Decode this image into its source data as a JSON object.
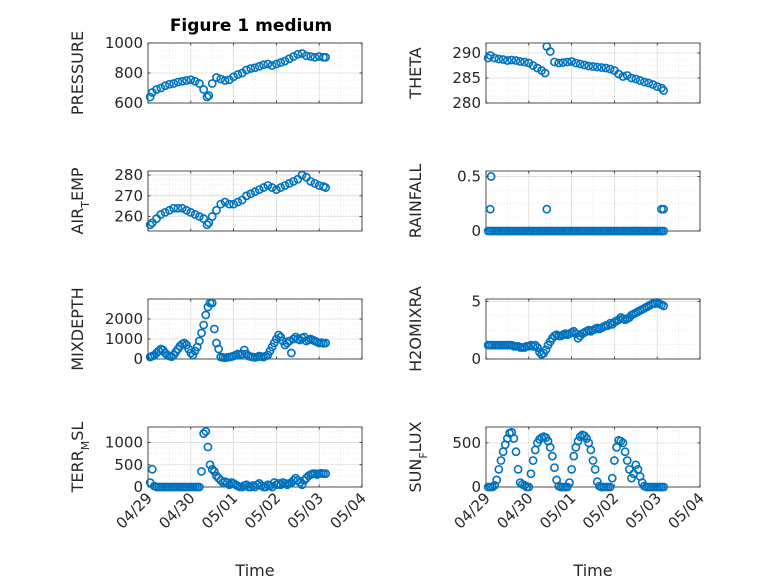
{
  "figure": {
    "title": "Figure 1 medium",
    "colors": {
      "marker": "#0072BD",
      "grid": "#dcdcdc",
      "axis": "#262626",
      "background": "#ffffff"
    }
  },
  "chart_data": [
    {
      "type": "scatter",
      "marker": "circle-open",
      "ylabel": "PRESSURE",
      "ylim": [
        600,
        1000
      ],
      "yticks": [
        600,
        800,
        1000
      ],
      "yticklabels": [
        "600",
        "800",
        "1000"
      ],
      "xlim": [
        0,
        5
      ],
      "xticks": [
        0,
        1,
        2,
        3,
        4,
        5
      ],
      "xticklabels": [
        "04/29",
        "04/30",
        "05/01",
        "05/02",
        "05/03",
        "05/04"
      ],
      "show_xticklabels": false,
      "xlabel": "",
      "grid": true,
      "x": [
        0.05,
        0.1,
        0.2,
        0.3,
        0.4,
        0.5,
        0.6,
        0.7,
        0.8,
        0.9,
        1.0,
        1.1,
        1.2,
        1.3,
        1.38,
        1.42,
        1.5,
        1.6,
        1.7,
        1.8,
        1.9,
        2.0,
        2.1,
        2.2,
        2.3,
        2.4,
        2.5,
        2.6,
        2.7,
        2.8,
        2.9,
        3.0,
        3.1,
        3.2,
        3.3,
        3.4,
        3.5,
        3.6,
        3.7,
        3.8,
        3.9,
        4.0,
        4.1,
        4.15
      ],
      "y": [
        640,
        670,
        690,
        700,
        715,
        725,
        730,
        740,
        745,
        750,
        755,
        745,
        730,
        690,
        640,
        650,
        730,
        770,
        760,
        750,
        755,
        775,
        790,
        800,
        820,
        830,
        835,
        845,
        855,
        860,
        850,
        860,
        870,
        880,
        895,
        910,
        925,
        930,
        915,
        910,
        905,
        910,
        905,
        905
      ]
    },
    {
      "type": "scatter",
      "marker": "circle-open",
      "ylabel": "THETA",
      "ylim": [
        280,
        292
      ],
      "yticks": [
        280,
        285,
        290
      ],
      "yticklabels": [
        "280",
        "285",
        "290"
      ],
      "xlim": [
        0,
        5
      ],
      "xticks": [
        0,
        1,
        2,
        3,
        4,
        5
      ],
      "xticklabels": [
        "04/29",
        "04/30",
        "05/01",
        "05/02",
        "05/03",
        "05/04"
      ],
      "show_xticklabels": false,
      "xlabel": "",
      "grid": true,
      "x": [
        0.05,
        0.1,
        0.2,
        0.3,
        0.4,
        0.5,
        0.6,
        0.7,
        0.8,
        0.9,
        1.0,
        1.1,
        1.2,
        1.3,
        1.38,
        1.42,
        1.5,
        1.6,
        1.7,
        1.8,
        1.9,
        2.0,
        2.1,
        2.2,
        2.3,
        2.4,
        2.5,
        2.6,
        2.7,
        2.8,
        2.9,
        3.0,
        3.1,
        3.2,
        3.3,
        3.4,
        3.5,
        3.6,
        3.7,
        3.8,
        3.9,
        4.0,
        4.1,
        4.15
      ],
      "y": [
        289,
        289.5,
        289,
        288.8,
        288.7,
        288.5,
        288.6,
        288.5,
        288.3,
        288.2,
        288,
        287.5,
        287,
        286.5,
        286,
        291.3,
        290.3,
        288.2,
        288,
        288.1,
        288.2,
        288.3,
        288,
        287.8,
        287.6,
        287.4,
        287.3,
        287.2,
        287.1,
        287,
        286.8,
        286.5,
        285.8,
        285.3,
        285.5,
        285,
        284.8,
        284.5,
        284.2,
        284,
        283.7,
        283.3,
        283,
        282.5
      ]
    },
    {
      "type": "scatter",
      "marker": "circle-open",
      "ylabel": "AIR_TEMP",
      "ylim": [
        253,
        282
      ],
      "yticks": [
        260,
        270,
        280
      ],
      "yticklabels": [
        "260",
        "270",
        "280"
      ],
      "xlim": [
        0,
        5
      ],
      "xticks": [
        0,
        1,
        2,
        3,
        4,
        5
      ],
      "xticklabels": [
        "04/29",
        "04/30",
        "05/01",
        "05/02",
        "05/03",
        "05/04"
      ],
      "show_xticklabels": false,
      "xlabel": "",
      "grid": true,
      "x": [
        0.05,
        0.1,
        0.2,
        0.3,
        0.4,
        0.5,
        0.6,
        0.7,
        0.8,
        0.9,
        1.0,
        1.1,
        1.2,
        1.3,
        1.38,
        1.42,
        1.5,
        1.6,
        1.7,
        1.8,
        1.9,
        2.0,
        2.1,
        2.2,
        2.3,
        2.4,
        2.5,
        2.6,
        2.7,
        2.8,
        2.9,
        3.0,
        3.1,
        3.2,
        3.3,
        3.4,
        3.5,
        3.6,
        3.7,
        3.8,
        3.9,
        4.0,
        4.1,
        4.15
      ],
      "y": [
        256,
        257,
        259,
        261,
        262,
        263,
        264,
        264,
        264,
        263,
        262,
        261,
        260,
        259,
        256,
        257,
        260,
        263,
        266,
        267,
        266,
        266,
        267,
        268,
        270,
        271,
        272,
        273,
        274,
        275,
        274,
        273,
        274,
        275,
        276,
        277,
        278,
        280,
        279,
        277,
        276,
        275,
        274.5,
        274
      ]
    },
    {
      "type": "scatter",
      "marker": "circle-open",
      "ylabel": "RAINFALL",
      "ylim": [
        0,
        0.55
      ],
      "yticks": [
        0,
        0.5
      ],
      "yticklabels": [
        "0",
        "0.5"
      ],
      "xlim": [
        0,
        5
      ],
      "xticks": [
        0,
        1,
        2,
        3,
        4,
        5
      ],
      "xticklabels": [
        "04/29",
        "04/30",
        "05/01",
        "05/02",
        "05/03",
        "05/04"
      ],
      "show_xticklabels": false,
      "xlabel": "",
      "grid": true,
      "x": [
        0.05,
        0.1,
        0.15,
        0.2,
        0.25,
        0.3,
        0.35,
        0.4,
        0.45,
        0.5,
        0.55,
        0.6,
        0.65,
        0.7,
        0.75,
        0.8,
        0.85,
        0.9,
        0.95,
        1.0,
        1.05,
        1.1,
        1.15,
        1.2,
        1.25,
        1.3,
        1.35,
        1.4,
        1.45,
        1.5,
        1.55,
        1.6,
        1.65,
        1.7,
        1.75,
        1.8,
        1.85,
        1.9,
        1.95,
        2.0,
        2.05,
        2.1,
        2.15,
        2.2,
        2.25,
        2.3,
        2.35,
        2.4,
        2.45,
        2.5,
        2.55,
        2.6,
        2.65,
        2.7,
        2.75,
        2.8,
        2.85,
        2.9,
        2.95,
        3.0,
        3.05,
        3.1,
        3.15,
        3.2,
        3.25,
        3.3,
        3.35,
        3.4,
        3.45,
        3.5,
        3.55,
        3.6,
        3.65,
        3.7,
        3.75,
        3.8,
        3.85,
        3.9,
        3.95,
        4.0,
        4.05,
        4.1,
        4.15,
        0.1,
        0.12,
        1.42,
        4.1,
        4.15
      ],
      "y": [
        0,
        0,
        0,
        0,
        0,
        0,
        0,
        0,
        0,
        0,
        0,
        0,
        0,
        0,
        0,
        0,
        0,
        0,
        0,
        0,
        0,
        0,
        0,
        0,
        0,
        0,
        0,
        0,
        0,
        0,
        0,
        0,
        0,
        0,
        0,
        0,
        0,
        0,
        0,
        0,
        0,
        0,
        0,
        0,
        0,
        0,
        0,
        0,
        0,
        0,
        0,
        0,
        0,
        0,
        0,
        0,
        0,
        0,
        0,
        0,
        0,
        0,
        0,
        0,
        0,
        0,
        0,
        0,
        0,
        0,
        0,
        0,
        0,
        0,
        0,
        0,
        0,
        0,
        0,
        0,
        0,
        0,
        0,
        0.2,
        0.5,
        0.2,
        0.2,
        0.2
      ]
    },
    {
      "type": "scatter",
      "marker": "circle-open",
      "ylabel": "MIXDEPTH",
      "ylim": [
        0,
        3000
      ],
      "yticks": [
        0,
        1000,
        2000
      ],
      "yticklabels": [
        "0",
        "1000",
        "2000"
      ],
      "xlim": [
        0,
        5
      ],
      "xticks": [
        0,
        1,
        2,
        3,
        4,
        5
      ],
      "xticklabels": [
        "04/29",
        "04/30",
        "05/01",
        "05/02",
        "05/03",
        "05/04"
      ],
      "show_xticklabels": false,
      "xlabel": "",
      "grid": true,
      "x": [
        0.05,
        0.1,
        0.15,
        0.2,
        0.25,
        0.3,
        0.35,
        0.4,
        0.45,
        0.5,
        0.55,
        0.6,
        0.65,
        0.7,
        0.75,
        0.8,
        0.85,
        0.9,
        0.95,
        1.0,
        1.05,
        1.1,
        1.15,
        1.2,
        1.25,
        1.3,
        1.35,
        1.4,
        1.45,
        1.5,
        1.55,
        1.6,
        1.65,
        1.7,
        1.75,
        1.8,
        1.85,
        1.9,
        1.95,
        2.0,
        2.05,
        2.1,
        2.15,
        2.2,
        2.25,
        2.3,
        2.35,
        2.4,
        2.45,
        2.5,
        2.55,
        2.6,
        2.65,
        2.7,
        2.75,
        2.8,
        2.85,
        2.9,
        2.95,
        3.0,
        3.05,
        3.1,
        3.15,
        3.2,
        3.25,
        3.3,
        3.35,
        3.4,
        3.45,
        3.5,
        3.55,
        3.6,
        3.65,
        3.7,
        3.75,
        3.8,
        3.85,
        3.9,
        3.95,
        4.0,
        4.05,
        4.1,
        4.15
      ],
      "y": [
        100,
        150,
        200,
        300,
        400,
        500,
        450,
        300,
        200,
        150,
        120,
        200,
        350,
        500,
        650,
        750,
        800,
        700,
        500,
        300,
        200,
        400,
        600,
        900,
        1300,
        1700,
        2200,
        2600,
        2800,
        2800,
        1500,
        800,
        500,
        100,
        80,
        60,
        80,
        100,
        120,
        150,
        200,
        250,
        200,
        250,
        450,
        250,
        150,
        120,
        100,
        80,
        100,
        150,
        120,
        100,
        150,
        200,
        400,
        600,
        800,
        1000,
        1200,
        1100,
        900,
        700,
        800,
        900,
        300,
        1000,
        1100,
        1000,
        950,
        1050,
        1100,
        900,
        950,
        1000,
        950,
        900,
        850,
        800,
        820,
        780,
        800
      ]
    },
    {
      "type": "scatter",
      "marker": "circle-open",
      "ylabel": "H2OMIXRA",
      "ylim": [
        0,
        5.2
      ],
      "yticks": [
        0,
        5
      ],
      "yticklabels": [
        "0",
        "5"
      ],
      "xlim": [
        0,
        5
      ],
      "xticks": [
        0,
        1,
        2,
        3,
        4,
        5
      ],
      "xticklabels": [
        "04/29",
        "04/30",
        "05/01",
        "05/02",
        "05/03",
        "05/04"
      ],
      "show_xticklabels": false,
      "xlabel": "",
      "grid": true,
      "x": [
        0.05,
        0.1,
        0.15,
        0.2,
        0.25,
        0.3,
        0.35,
        0.4,
        0.45,
        0.5,
        0.55,
        0.6,
        0.65,
        0.7,
        0.75,
        0.8,
        0.85,
        0.9,
        0.95,
        1.0,
        1.05,
        1.1,
        1.15,
        1.2,
        1.25,
        1.3,
        1.35,
        1.4,
        1.45,
        1.5,
        1.55,
        1.6,
        1.65,
        1.7,
        1.75,
        1.8,
        1.85,
        1.9,
        1.95,
        2.0,
        2.05,
        2.1,
        2.15,
        2.2,
        2.25,
        2.3,
        2.35,
        2.4,
        2.45,
        2.5,
        2.55,
        2.6,
        2.65,
        2.7,
        2.75,
        2.8,
        2.85,
        2.9,
        2.95,
        3.0,
        3.05,
        3.1,
        3.15,
        3.2,
        3.25,
        3.3,
        3.35,
        3.4,
        3.45,
        3.5,
        3.55,
        3.6,
        3.65,
        3.7,
        3.75,
        3.8,
        3.85,
        3.9,
        3.95,
        4.0,
        4.05,
        4.1,
        4.15
      ],
      "y": [
        1.2,
        1.2,
        1.2,
        1.2,
        1.2,
        1.2,
        1.2,
        1.2,
        1.2,
        1.2,
        1.2,
        1.2,
        1.1,
        1.1,
        1.1,
        1.0,
        1.0,
        1.0,
        1.1,
        1.1,
        1.2,
        1.1,
        1.2,
        1.0,
        0.6,
        0.4,
        0.5,
        0.8,
        1.2,
        1.5,
        1.8,
        2.0,
        2.1,
        2.0,
        2.0,
        2.1,
        2.2,
        2.1,
        2.2,
        2.3,
        2.4,
        2.2,
        1.8,
        2.0,
        2.2,
        2.3,
        2.4,
        2.5,
        2.4,
        2.5,
        2.6,
        2.7,
        2.6,
        2.7,
        2.8,
        2.9,
        2.9,
        3.1,
        3.0,
        3.2,
        3.3,
        3.4,
        3.6,
        3.5,
        3.4,
        3.5,
        3.6,
        3.8,
        3.9,
        4.0,
        4.1,
        4.2,
        4.3,
        4.4,
        4.5,
        4.6,
        4.7,
        4.8,
        4.8,
        4.9,
        4.8,
        4.7,
        4.6
      ]
    },
    {
      "type": "scatter",
      "marker": "circle-open",
      "ylabel": "TERR_MSL",
      "ylim": [
        0,
        1350
      ],
      "yticks": [
        0,
        500,
        1000
      ],
      "yticklabels": [
        "0",
        "500",
        "1000"
      ],
      "xlim": [
        0,
        5
      ],
      "xticks": [
        0,
        1,
        2,
        3,
        4,
        5
      ],
      "xticklabels": [
        "04/29",
        "04/30",
        "05/01",
        "05/02",
        "05/03",
        "05/04"
      ],
      "show_xticklabels": true,
      "xlabel": "Time",
      "grid": true,
      "x": [
        0.05,
        0.1,
        0.15,
        0.2,
        0.25,
        0.3,
        0.35,
        0.4,
        0.45,
        0.5,
        0.55,
        0.6,
        0.65,
        0.7,
        0.75,
        0.8,
        0.85,
        0.9,
        0.95,
        1.0,
        1.05,
        1.1,
        1.15,
        1.2,
        1.25,
        1.3,
        1.35,
        1.4,
        1.45,
        1.5,
        1.55,
        1.6,
        1.65,
        1.7,
        1.75,
        1.8,
        1.85,
        1.9,
        1.95,
        2.0,
        2.05,
        2.1,
        2.15,
        2.2,
        2.25,
        2.3,
        2.35,
        2.4,
        2.45,
        2.5,
        2.55,
        2.6,
        2.65,
        2.7,
        2.75,
        2.8,
        2.85,
        2.9,
        2.95,
        3.0,
        3.05,
        3.1,
        3.15,
        3.2,
        3.25,
        3.3,
        3.35,
        3.4,
        3.45,
        3.5,
        3.55,
        3.6,
        3.65,
        3.7,
        3.75,
        3.8,
        3.85,
        3.9,
        3.95,
        4.0,
        4.05,
        4.1,
        4.15
      ],
      "y": [
        100,
        400,
        20,
        0,
        0,
        0,
        0,
        0,
        0,
        0,
        0,
        0,
        0,
        0,
        0,
        0,
        0,
        0,
        0,
        0,
        0,
        0,
        0,
        0,
        350,
        1200,
        1250,
        900,
        500,
        400,
        350,
        250,
        200,
        150,
        100,
        120,
        100,
        50,
        100,
        80,
        50,
        20,
        0,
        0,
        30,
        50,
        0,
        0,
        30,
        0,
        50,
        80,
        30,
        0,
        0,
        50,
        30,
        0,
        100,
        50,
        80,
        50,
        100,
        80,
        50,
        80,
        100,
        150,
        200,
        150,
        100,
        50,
        150,
        200,
        250,
        280,
        300,
        300,
        280,
        300,
        310,
        300,
        300
      ]
    },
    {
      "type": "scatter",
      "marker": "circle-open",
      "ylabel": "SUN_FLUX",
      "ylim": [
        0,
        680
      ],
      "yticks": [
        0,
        500
      ],
      "yticklabels": [
        "0",
        "500"
      ],
      "xlim": [
        0,
        5
      ],
      "xticks": [
        0,
        1,
        2,
        3,
        4,
        5
      ],
      "xticklabels": [
        "04/29",
        "04/30",
        "05/01",
        "05/02",
        "05/03",
        "05/04"
      ],
      "show_xticklabels": true,
      "xlabel": "Time",
      "grid": true,
      "x": [
        0.05,
        0.1,
        0.15,
        0.2,
        0.25,
        0.3,
        0.35,
        0.4,
        0.45,
        0.5,
        0.55,
        0.6,
        0.65,
        0.7,
        0.75,
        0.8,
        0.85,
        0.9,
        0.95,
        1.0,
        1.05,
        1.1,
        1.15,
        1.2,
        1.25,
        1.3,
        1.35,
        1.4,
        1.45,
        1.5,
        1.55,
        1.6,
        1.65,
        1.7,
        1.75,
        1.8,
        1.85,
        1.9,
        1.95,
        2.0,
        2.05,
        2.1,
        2.15,
        2.2,
        2.25,
        2.3,
        2.35,
        2.4,
        2.45,
        2.5,
        2.55,
        2.6,
        2.65,
        2.7,
        2.75,
        2.8,
        2.85,
        2.9,
        2.95,
        3.0,
        3.05,
        3.1,
        3.15,
        3.2,
        3.25,
        3.3,
        3.35,
        3.4,
        3.45,
        3.5,
        3.55,
        3.6,
        3.65,
        3.7,
        3.75,
        3.8,
        3.85,
        3.9,
        3.95,
        4.0,
        4.05,
        4.1,
        4.15
      ],
      "y": [
        0,
        0,
        0,
        20,
        80,
        200,
        300,
        400,
        480,
        550,
        610,
        620,
        550,
        400,
        200,
        50,
        30,
        20,
        0,
        0,
        150,
        300,
        420,
        500,
        540,
        560,
        570,
        560,
        520,
        450,
        350,
        220,
        80,
        10,
        0,
        0,
        0,
        0,
        50,
        200,
        350,
        450,
        520,
        570,
        590,
        580,
        550,
        500,
        420,
        300,
        200,
        60,
        10,
        0,
        0,
        0,
        0,
        0,
        100,
        300,
        450,
        530,
        520,
        500,
        400,
        300,
        200,
        100,
        150,
        250,
        200,
        120,
        50,
        10,
        0,
        0,
        0,
        0,
        0,
        0,
        0,
        0,
        0
      ]
    }
  ]
}
